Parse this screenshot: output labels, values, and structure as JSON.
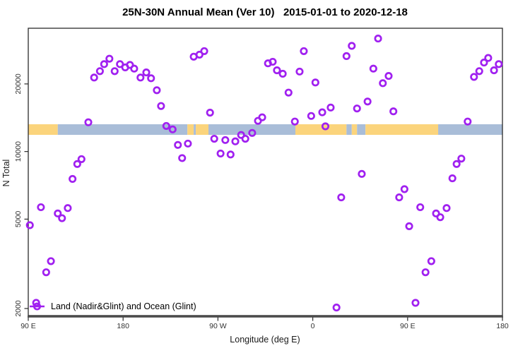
{
  "chart_data": {
    "type": "scatter",
    "title": "25N-30N Annual Mean (Ver 10)   2015-01-01 to 2020-12-18",
    "xlabel": "Longitude (deg E)",
    "ylabel": "N Total",
    "legend_label": "Land (Nadir&Glint) and Ocean (Glint)",
    "x_axis": {
      "domain": [
        90,
        540
      ],
      "note": "longitude wraps eastward: 90E -> 180 -> 90W -> 0 -> 90E -> 180",
      "ticks": [
        {
          "pos": 90,
          "label": "90 E"
        },
        {
          "pos": 180,
          "label": "180"
        },
        {
          "pos": 270,
          "label": "90 W"
        },
        {
          "pos": 360,
          "label": "0"
        },
        {
          "pos": 450,
          "label": "90 E"
        },
        {
          "pos": 540,
          "label": "180"
        }
      ],
      "grid": false
    },
    "y_axis": {
      "scale": "log",
      "domain": [
        1860,
        35400
      ],
      "ticks": [
        {
          "pos": 2000,
          "label": "2000"
        },
        {
          "pos": 5000,
          "label": "5000"
        },
        {
          "pos": 10000,
          "label": "10000"
        },
        {
          "pos": 20000,
          "label": "20000"
        }
      ],
      "grid": false
    },
    "land_ocean_band": {
      "description": "horizontal map strip of the 25N-30N latitude band; land=orange, ocean=blue",
      "segments": [
        {
          "from": 90,
          "to": 118,
          "surface": "land"
        },
        {
          "from": 118,
          "to": 241,
          "surface": "ocean"
        },
        {
          "from": 241,
          "to": 247,
          "surface": "land"
        },
        {
          "from": 247,
          "to": 249,
          "surface": "ocean"
        },
        {
          "from": 249,
          "to": 261,
          "surface": "land"
        },
        {
          "from": 261,
          "to": 343.5,
          "surface": "ocean"
        },
        {
          "from": 343.5,
          "to": 392,
          "surface": "land"
        },
        {
          "from": 392,
          "to": 397,
          "surface": "ocean"
        },
        {
          "from": 397,
          "to": 402,
          "surface": "land"
        },
        {
          "from": 402,
          "to": 410,
          "surface": "ocean"
        },
        {
          "from": 410,
          "to": 479,
          "surface": "land"
        },
        {
          "from": 479,
          "to": 540,
          "surface": "ocean"
        }
      ]
    },
    "points": [
      [
        167,
        25900
      ],
      [
        162,
        24500
      ],
      [
        158,
        22800
      ],
      [
        152.5,
        21350
      ],
      [
        177,
        24500
      ],
      [
        172,
        22800
      ],
      [
        182,
        23700
      ],
      [
        186.5,
        24300
      ],
      [
        190.5,
        23400
      ],
      [
        196.5,
        21350
      ],
      [
        202,
        22500
      ],
      [
        206.5,
        21200
      ],
      [
        212,
        18750
      ],
      [
        216,
        15950
      ],
      [
        147,
        13500
      ],
      [
        221,
        13000
      ],
      [
        247,
        26450
      ],
      [
        252.5,
        27000
      ],
      [
        257,
        28000
      ],
      [
        317.5,
        24700
      ],
      [
        322,
        25100
      ],
      [
        326,
        23000
      ],
      [
        331.5,
        22200
      ],
      [
        347.5,
        22700
      ],
      [
        351.5,
        28000
      ],
      [
        362.5,
        20300
      ],
      [
        337,
        18300
      ],
      [
        262.5,
        14900
      ],
      [
        308,
        13700
      ],
      [
        312,
        14200
      ],
      [
        377,
        15700
      ],
      [
        369,
        14950
      ],
      [
        358.5,
        14400
      ],
      [
        343,
        13600
      ],
      [
        422,
        31850
      ],
      [
        397,
        29550
      ],
      [
        392,
        26600
      ],
      [
        417.5,
        23400
      ],
      [
        432,
        21700
      ],
      [
        426.5,
        20150
      ],
      [
        412,
        16700
      ],
      [
        402,
        15550
      ],
      [
        436.5,
        15100
      ],
      [
        507,
        13600
      ],
      [
        513,
        21500
      ],
      [
        518,
        22800
      ],
      [
        522.5,
        24900
      ],
      [
        526.5,
        26100
      ],
      [
        532,
        23000
      ],
      [
        536.5,
        24500
      ],
      [
        227,
        12550
      ],
      [
        232,
        10700
      ],
      [
        241.5,
        10850
      ],
      [
        236,
        9350
      ],
      [
        140.5,
        9250
      ],
      [
        136.5,
        8800
      ],
      [
        132,
        7550
      ],
      [
        127.5,
        5600
      ],
      [
        102,
        5650
      ],
      [
        118,
        5300
      ],
      [
        122,
        5050
      ],
      [
        91.5,
        4700
      ],
      [
        266.5,
        11400
      ],
      [
        277,
        11250
      ],
      [
        286.5,
        11100
      ],
      [
        292,
        11850
      ],
      [
        296,
        11400
      ],
      [
        302.5,
        12100
      ],
      [
        272.5,
        9800
      ],
      [
        282,
        9700
      ],
      [
        372,
        12950
      ],
      [
        387,
        6250
      ],
      [
        406.5,
        7950
      ],
      [
        501,
        9300
      ],
      [
        496.5,
        8800
      ],
      [
        492.5,
        7600
      ],
      [
        447,
        6800
      ],
      [
        442,
        6250
      ],
      [
        462,
        5650
      ],
      [
        487,
        5600
      ],
      [
        477,
        5300
      ],
      [
        481,
        5100
      ],
      [
        111.5,
        3250
      ],
      [
        107,
        2900
      ],
      [
        97.5,
        2120
      ],
      [
        382.5,
        2020
      ],
      [
        451.5,
        4650
      ],
      [
        472.5,
        3250
      ],
      [
        467,
        2900
      ],
      [
        457.5,
        2120
      ]
    ],
    "colors": {
      "point": "#A020F0",
      "land": "#FBD47C",
      "ocean": "#A9BDD8",
      "box": "#2B2B2B",
      "bottom_axis": "#4D4D4D",
      "tick_text": "#333333"
    },
    "legend_position": "bottom-left"
  }
}
